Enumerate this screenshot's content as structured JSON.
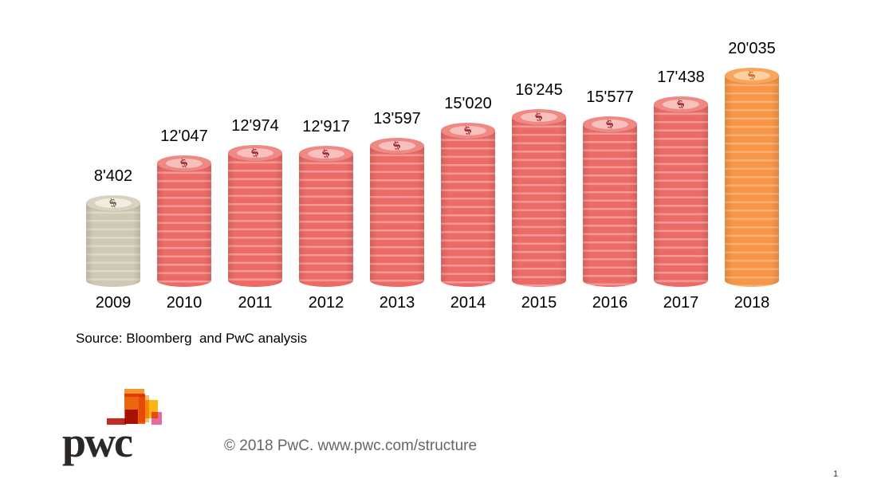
{
  "chart_data": {
    "type": "bar",
    "title": "",
    "xlabel": "",
    "ylabel": "",
    "grid": false,
    "legend": "none",
    "categories": [
      "2009",
      "2010",
      "2011",
      "2012",
      "2013",
      "2014",
      "2015",
      "2016",
      "2017",
      "2018"
    ],
    "values": [
      8402,
      12047,
      12974,
      12917,
      13597,
      15020,
      16245,
      15577,
      17438,
      20035
    ],
    "value_labels": [
      "8'402",
      "12'047",
      "12'974",
      "12'917",
      "13'597",
      "15'020",
      "16'245",
      "15'577",
      "17'438",
      "20'035"
    ],
    "bar_styles": [
      "beige",
      "red",
      "red",
      "red",
      "red",
      "red",
      "red",
      "red",
      "red",
      "orange"
    ],
    "ylim": [
      0,
      20035
    ],
    "source_note": "Source: Bloomberg  and PwC analysis",
    "coin_symbol": "$",
    "palette": {
      "beige": {
        "base": "#cec8b4",
        "stripe": "#ded9c9",
        "rim": "#d8d2c0",
        "inner": "#f0ecdf",
        "dollar": "#6f6a52"
      },
      "red": {
        "base": "#ec6b67",
        "stripe": "#f49a96",
        "rim": "#ef8984",
        "inner": "#f7c0bc",
        "dollar": "#a32430"
      },
      "orange": {
        "base": "#f79647",
        "stripe": "#fbb073",
        "rim": "#f9a55e",
        "inner": "#fdd0a2",
        "dollar": "#d2691e"
      }
    }
  },
  "footer": {
    "copyright": "© 2018 PwC. www.pwc.com/structure",
    "logo_text": "pwc",
    "page_number": "1"
  }
}
